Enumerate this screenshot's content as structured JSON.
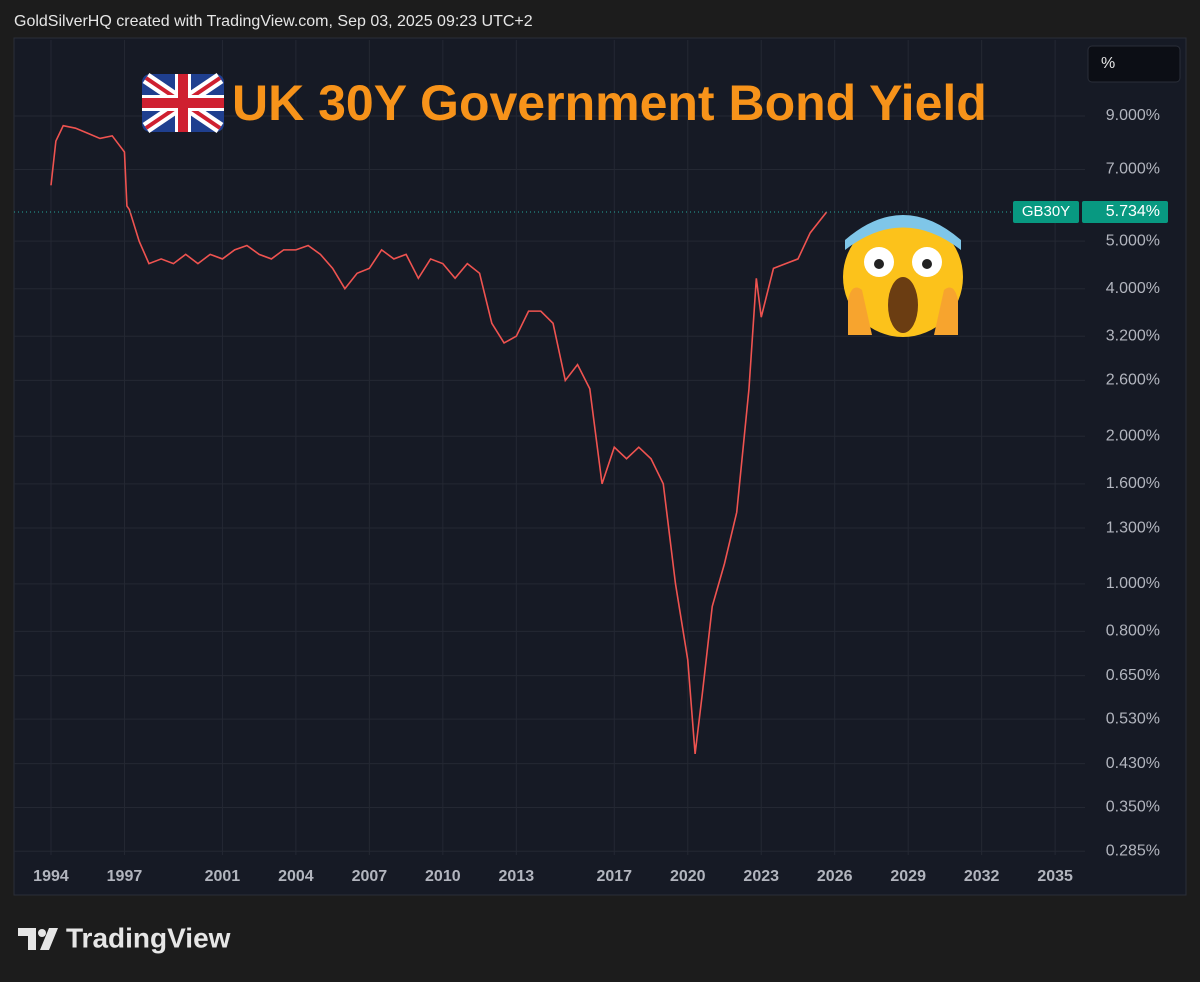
{
  "chart_data": {
    "type": "line",
    "title": "UK 30Y Government Bond Yield",
    "credit": "GoldSilverHQ created with TradingView.com, Sep 03, 2025 09:23 UTC+2",
    "unit_button": "%",
    "symbol": "GB30Y",
    "price": 5.734,
    "price_label": "5.734%",
    "brand": "TradingView",
    "log_scale": true,
    "grid": true,
    "color": "#ef5350",
    "x": [
      1994.0,
      1994.2,
      1994.5,
      1995.0,
      1995.5,
      1996.0,
      1996.5,
      1997.0,
      1997.1,
      1997.2,
      1997.6,
      1998.0,
      1998.5,
      1999.0,
      1999.5,
      2000.0,
      2000.5,
      2001.0,
      2001.5,
      2002.0,
      2002.5,
      2003.0,
      2003.5,
      2004.0,
      2004.5,
      2005.0,
      2005.5,
      2006.0,
      2006.5,
      2007.0,
      2007.5,
      2008.0,
      2008.5,
      2009.0,
      2009.5,
      2010.0,
      2010.5,
      2011.0,
      2011.5,
      2012.0,
      2012.5,
      2013.0,
      2013.5,
      2014.0,
      2014.5,
      2015.0,
      2015.5,
      2016.0,
      2016.5,
      2017.0,
      2017.5,
      2018.0,
      2018.5,
      2019.0,
      2019.5,
      2020.0,
      2020.3,
      2020.6,
      2021.0,
      2021.5,
      2022.0,
      2022.5,
      2022.8,
      2023.0,
      2023.5,
      2024.0,
      2024.5,
      2025.0,
      2025.67
    ],
    "values": [
      6.5,
      8.0,
      8.6,
      8.5,
      8.3,
      8.1,
      8.2,
      7.6,
      5.9,
      5.8,
      5.0,
      4.5,
      4.6,
      4.5,
      4.7,
      4.5,
      4.7,
      4.6,
      4.8,
      4.9,
      4.7,
      4.6,
      4.8,
      4.8,
      4.9,
      4.7,
      4.4,
      4.0,
      4.3,
      4.4,
      4.8,
      4.6,
      4.7,
      4.2,
      4.6,
      4.5,
      4.2,
      4.5,
      4.3,
      3.4,
      3.1,
      3.2,
      3.6,
      3.6,
      3.4,
      2.6,
      2.8,
      2.5,
      1.6,
      1.9,
      1.8,
      1.9,
      1.8,
      1.6,
      1.0,
      0.7,
      0.45,
      0.6,
      0.9,
      1.1,
      1.4,
      2.5,
      4.2,
      3.5,
      4.4,
      4.5,
      4.6,
      5.2,
      5.734
    ],
    "xlim": [
      1992.49,
      2036.22
    ],
    "xticks": [
      1994,
      1997,
      2001,
      2004,
      2007,
      2010,
      2013,
      2017,
      2020,
      2023,
      2026,
      2029,
      2032,
      2035
    ],
    "ylim": [
      0.28,
      12.86
    ],
    "yticks": [
      {
        "value": 0.285,
        "label": "0.285%"
      },
      {
        "value": 0.35,
        "label": "0.350%"
      },
      {
        "value": 0.43,
        "label": "0.430%"
      },
      {
        "value": 0.53,
        "label": "0.530%"
      },
      {
        "value": 0.65,
        "label": "0.650%"
      },
      {
        "value": 0.8,
        "label": "0.800%"
      },
      {
        "value": 1.0,
        "label": "1.000%"
      },
      {
        "value": 1.3,
        "label": "1.300%"
      },
      {
        "value": 1.6,
        "label": "1.600%"
      },
      {
        "value": 2.0,
        "label": "2.000%"
      },
      {
        "value": 2.6,
        "label": "2.600%"
      },
      {
        "value": 3.2,
        "label": "3.200%"
      },
      {
        "value": 4.0,
        "label": "4.000%"
      },
      {
        "value": 5.0,
        "label": "5.000%"
      },
      {
        "value": 7.0,
        "label": "7.000%"
      },
      {
        "value": 9.0,
        "label": "9.000%"
      }
    ]
  }
}
